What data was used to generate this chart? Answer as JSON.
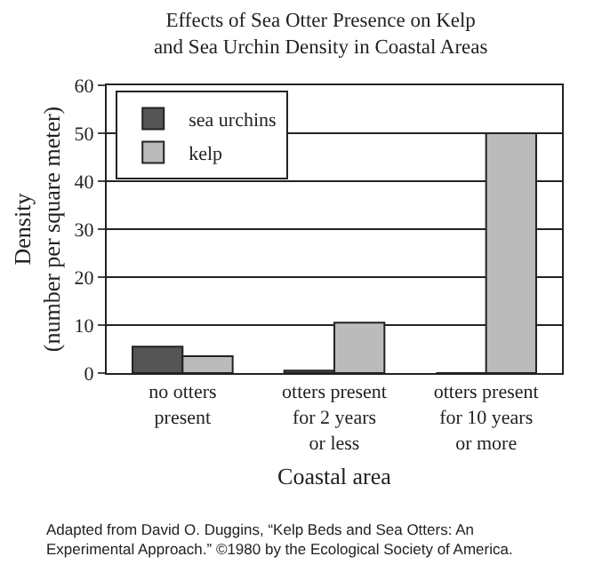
{
  "chart_data": {
    "type": "bar",
    "title": "Effects of Sea Otter Presence on Kelp\nand Sea Urchin Density in Coastal Areas",
    "xlabel": "Coastal area",
    "ylabel": "Density\n(number per square meter)",
    "categories": [
      "no otters\npresent",
      "otters present\nfor 2 years\nor less",
      "otters present\nfor 10 years\nor more"
    ],
    "series": [
      {
        "name": "sea urchins",
        "color": "#555555",
        "values": [
          5.5,
          0.5,
          0
        ]
      },
      {
        "name": "kelp",
        "color": "#bbbbbb",
        "values": [
          3.5,
          10.5,
          50
        ]
      }
    ],
    "ylim": [
      0,
      60
    ],
    "yticks": [
      0,
      10,
      20,
      30,
      40,
      50,
      60
    ],
    "grid": "y",
    "legend": "top left",
    "annotations": [
      "Adapted from David O. Duggins, “Kelp Beds and Sea Otters: An\nExperimental Approach.” ©1980 by the Ecological Society of America."
    ]
  }
}
